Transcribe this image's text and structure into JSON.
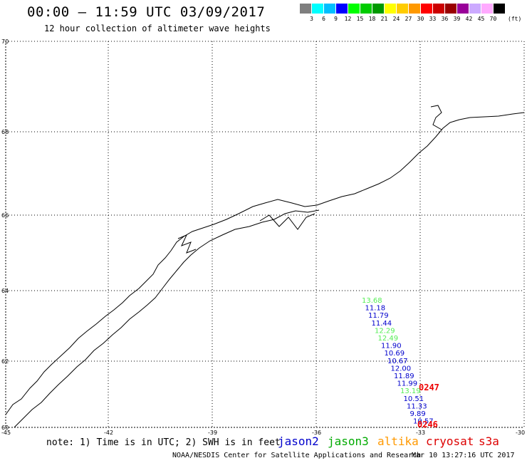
{
  "title": "00:00 – 11:59 UTC 03/09/2017",
  "subtitle": "12 hour collection of altimeter wave heights",
  "colorbar": {
    "colors": [
      "#7f7f7f",
      "#00ffff",
      "#00bfff",
      "#0000ff",
      "#00ff00",
      "#00cc00",
      "#009900",
      "#ffff00",
      "#ffcc00",
      "#ff9900",
      "#ff0000",
      "#cc0000",
      "#990000",
      "#990099",
      "#ccaaff",
      "#ffaaff",
      "#000000"
    ],
    "labels": [
      "3",
      "6",
      "9",
      "12",
      "15",
      "18",
      "21",
      "24",
      "27",
      "30",
      "33",
      "36",
      "39",
      "42",
      "45",
      "70"
    ],
    "unit": "(ft)"
  },
  "map": {
    "lon_range": [
      -45,
      -30
    ],
    "lat_range": [
      60,
      70
    ],
    "lat_ticks": [
      "70",
      "68",
      "66",
      "64",
      "62",
      "60"
    ],
    "lon_ticks": [
      "-45",
      "-42",
      "-39",
      "-36",
      "-33",
      "-30"
    ],
    "grid": "dotted",
    "observations": [
      {
        "text": "13.68",
        "sat": "jason3"
      },
      {
        "text": "11.18",
        "sat": "jason2"
      },
      {
        "text": "11.79",
        "sat": "jason2"
      },
      {
        "text": "11.44",
        "sat": "jason2"
      },
      {
        "text": "12.29",
        "sat": "jason3"
      },
      {
        "text": "12.49",
        "sat": "jason3"
      },
      {
        "text": "11.90",
        "sat": "jason2"
      },
      {
        "text": "10.69",
        "sat": "jason2"
      },
      {
        "text": "10.67",
        "sat": "jason2"
      },
      {
        "text": "12.00",
        "sat": "jason2"
      },
      {
        "text": "11.89",
        "sat": "jason2"
      },
      {
        "text": "11.99",
        "sat": "jason2"
      },
      {
        "text": "13.19",
        "sat": "jason3"
      },
      {
        "text": "10.51",
        "sat": "jason2"
      },
      {
        "text": "11.33",
        "sat": "jason2"
      },
      {
        "text": "9.89",
        "sat": "jason2"
      },
      {
        "text": "10.57",
        "sat": "jason2"
      }
    ],
    "time_labels": [
      "0247",
      "0246"
    ]
  },
  "note": "note: 1) Time is in UTC; 2) SWH is in feet",
  "legend": [
    {
      "label": "jason2",
      "color": "#0000cc"
    },
    {
      "label": "jason3",
      "color": "#00aa00"
    },
    {
      "label": "altika",
      "color": "#ff9900"
    },
    {
      "label": "cryosat",
      "color": "#dd0000"
    },
    {
      "label": "s3a",
      "color": "#dd0000"
    }
  ],
  "footer": "NOAA/NESDIS Center for Satellite Applications and Research",
  "timestamp": "Mar 10 13:27:16 UTC 2017",
  "sat_colors": {
    "jason2": "#0000cc",
    "jason3": "#55ee55",
    "time": "#ee0000"
  }
}
